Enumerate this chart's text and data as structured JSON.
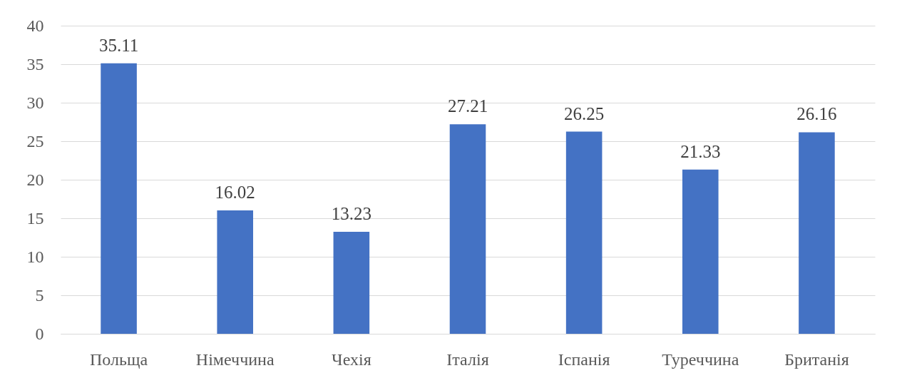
{
  "chart_data": {
    "type": "bar",
    "categories": [
      "Польща",
      "Німеччина",
      "Чехія",
      "Італія",
      "Іспанія",
      "Туреччина",
      "Британія"
    ],
    "values": [
      35.11,
      16.02,
      13.23,
      27.21,
      26.25,
      21.33,
      26.16
    ],
    "color": "#4472c4",
    "ylim": [
      0,
      40
    ],
    "yticks": [
      0,
      5,
      10,
      15,
      20,
      25,
      30,
      35,
      40
    ],
    "grid": "y",
    "data_labels": true
  }
}
